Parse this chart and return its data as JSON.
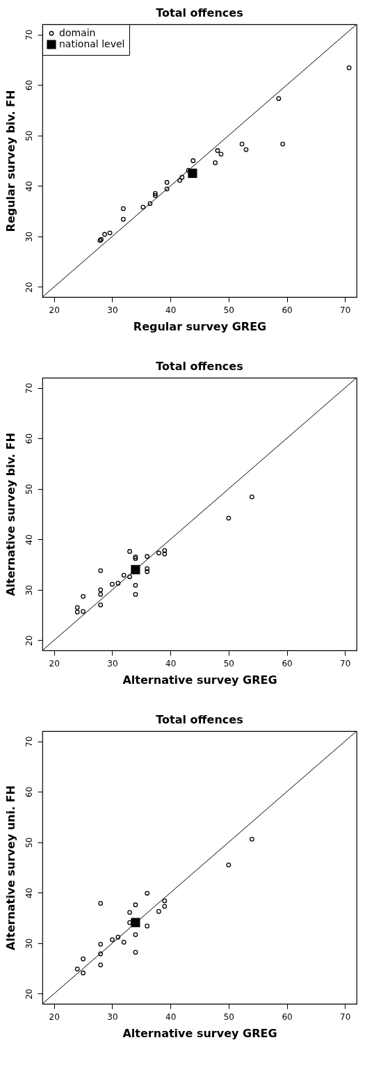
{
  "chart_data": [
    {
      "type": "scatter",
      "title": "Total offences",
      "xlabel": "Regular survey GREG",
      "ylabel": "Regular survey biv. FH",
      "xlim": [
        18,
        72
      ],
      "ylim": [
        18,
        72
      ],
      "xticks": [
        20,
        30,
        40,
        50,
        60,
        70
      ],
      "yticks": [
        20,
        30,
        40,
        50,
        60,
        70
      ],
      "grid": false,
      "legend": "top left",
      "series": [
        {
          "name": "domain",
          "color": "#000000",
          "marker": "circle",
          "x": [
            27.9,
            28.1,
            28.7,
            29.6,
            31.9,
            31.9,
            35.3,
            36.5,
            37.4,
            37.4,
            39.4,
            39.4,
            41.6,
            42.0,
            43.1,
            43.9,
            47.7,
            48.1,
            48.7,
            52.3,
            53.0,
            58.6,
            59.3,
            70.7
          ],
          "values": [
            29.2,
            29.4,
            30.4,
            30.7,
            35.5,
            33.4,
            35.8,
            36.5,
            38.5,
            38.1,
            40.7,
            39.4,
            41.1,
            41.7,
            43.1,
            45.0,
            44.6,
            47.0,
            46.3,
            48.3,
            47.2,
            57.3,
            48.3,
            63.4
          ]
        },
        {
          "name": "national level",
          "color": "#000000",
          "marker": "square",
          "x": [
            43.8
          ],
          "values": [
            42.5
          ]
        },
        {
          "type": "line",
          "color": "#000000",
          "x": [
            18,
            72
          ],
          "values": [
            18,
            72
          ]
        }
      ]
    },
    {
      "type": "scatter",
      "title": "Total offences",
      "xlabel": "Alternative survey GREG",
      "ylabel": "Alternative survey biv. FH",
      "xlim": [
        18,
        72
      ],
      "ylim": [
        18,
        72
      ],
      "xticks": [
        20,
        30,
        40,
        50,
        60,
        70
      ],
      "yticks": [
        20,
        30,
        40,
        50,
        60,
        70
      ],
      "grid": false,
      "legend": "top left",
      "series": [
        {
          "name": "domain",
          "color": "#000000",
          "marker": "circle",
          "x": [
            24,
            24,
            25,
            25,
            28,
            28,
            28,
            28,
            30,
            31,
            32,
            33,
            33,
            34,
            34,
            34,
            34,
            36,
            36,
            36,
            38,
            39,
            39,
            50,
            54
          ],
          "values": [
            26.5,
            25.6,
            25.7,
            28.7,
            33.8,
            30.0,
            29.1,
            27.0,
            31.1,
            31.3,
            32.9,
            32.6,
            37.6,
            36.5,
            36.2,
            30.9,
            29.1,
            36.6,
            34.2,
            33.6,
            37.3,
            37.8,
            37.1,
            44.2,
            48.4
          ]
        },
        {
          "name": "national level",
          "color": "#000000",
          "marker": "square",
          "x": [
            34
          ],
          "values": [
            34
          ]
        },
        {
          "type": "line",
          "color": "#000000",
          "x": [
            18,
            72
          ],
          "values": [
            18,
            72
          ]
        }
      ]
    },
    {
      "type": "scatter",
      "title": "Total offences",
      "xlabel": "Alternative survey GREG",
      "ylabel": "Alternative survey uni. FH",
      "xlim": [
        18,
        72
      ],
      "ylim": [
        18,
        72
      ],
      "xticks": [
        20,
        30,
        40,
        50,
        60,
        70
      ],
      "yticks": [
        20,
        30,
        40,
        50,
        60,
        70
      ],
      "grid": false,
      "legend": "top left",
      "series": [
        {
          "name": "domain",
          "color": "#000000",
          "marker": "circle",
          "x": [
            24,
            25,
            25,
            28,
            28,
            28,
            28,
            30,
            31,
            32,
            33,
            33,
            34,
            34,
            34,
            36,
            36,
            38,
            39,
            39,
            50,
            54
          ],
          "values": [
            24.9,
            26.9,
            24.1,
            37.9,
            29.8,
            27.9,
            25.7,
            30.7,
            31.2,
            30.2,
            36.1,
            34.1,
            37.6,
            31.7,
            28.2,
            39.9,
            33.4,
            36.3,
            38.4,
            37.3,
            45.5,
            50.6
          ]
        },
        {
          "name": "national level",
          "color": "#000000",
          "marker": "square",
          "x": [
            34
          ],
          "values": [
            34.1
          ]
        },
        {
          "type": "line",
          "color": "#000000",
          "x": [
            18,
            72
          ],
          "values": [
            18,
            72
          ]
        }
      ]
    }
  ]
}
